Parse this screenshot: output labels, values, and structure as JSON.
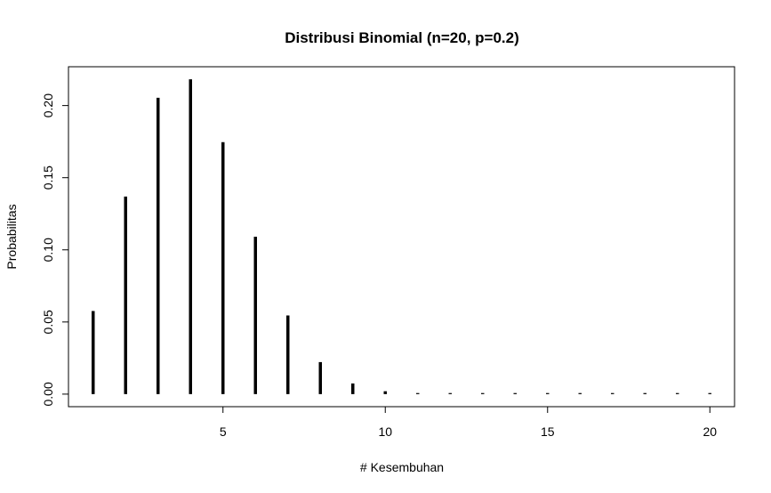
{
  "chart_data": {
    "type": "bar",
    "title": "Distribusi Binomial (n=20, p=0.2)",
    "xlabel": "# Kesembuhan",
    "ylabel": "Probabilitas",
    "x": [
      1,
      2,
      3,
      4,
      5,
      6,
      7,
      8,
      9,
      10,
      11,
      12,
      13,
      14,
      15,
      16,
      17,
      18,
      19,
      20
    ],
    "values": [
      0.0576,
      0.1369,
      0.2054,
      0.2182,
      0.1746,
      0.1091,
      0.0545,
      0.0222,
      0.0074,
      0.002,
      0.0005,
      0.0001,
      0.0,
      0.0,
      0.0,
      0.0,
      0.0,
      0.0,
      0.0,
      0.0
    ],
    "xlim": [
      0.24,
      20.76
    ],
    "ylim": [
      -0.0087,
      0.2269
    ],
    "x_ticks": [
      5,
      10,
      15,
      20
    ],
    "x_tick_labels": [
      "5",
      "10",
      "15",
      "20"
    ],
    "y_ticks": [
      0.0,
      0.05,
      0.1,
      0.15,
      0.2
    ],
    "y_tick_labels": [
      "0.00",
      "0.05",
      "0.10",
      "0.15",
      "0.20"
    ],
    "grid": false,
    "color": "#000000"
  }
}
